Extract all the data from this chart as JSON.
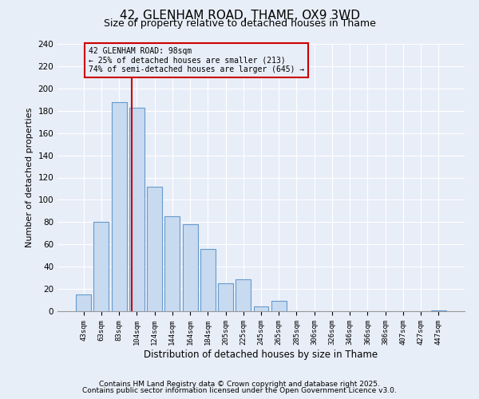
{
  "title": "42, GLENHAM ROAD, THAME, OX9 3WD",
  "subtitle": "Size of property relative to detached houses in Thame",
  "xlabel": "Distribution of detached houses by size in Thame",
  "ylabel": "Number of detached properties",
  "bar_labels": [
    "43sqm",
    "63sqm",
    "83sqm",
    "104sqm",
    "124sqm",
    "144sqm",
    "164sqm",
    "184sqm",
    "205sqm",
    "225sqm",
    "245sqm",
    "265sqm",
    "285sqm",
    "306sqm",
    "326sqm",
    "346sqm",
    "366sqm",
    "386sqm",
    "407sqm",
    "427sqm",
    "447sqm"
  ],
  "bar_values": [
    15,
    80,
    188,
    183,
    112,
    85,
    78,
    56,
    25,
    29,
    4,
    9,
    0,
    0,
    0,
    0,
    0,
    0,
    0,
    0,
    1
  ],
  "bar_color": "#c8daf0",
  "bar_edge_color": "#6699cc",
  "annotation_line_color": "#cc0000",
  "annotation_box_text": "42 GLENHAM ROAD: 98sqm\n← 25% of detached houses are smaller (213)\n74% of semi-detached houses are larger (645) →",
  "annotation_box_edge_color": "#cc0000",
  "ylim": [
    0,
    240
  ],
  "yticks": [
    0,
    20,
    40,
    60,
    80,
    100,
    120,
    140,
    160,
    180,
    200,
    220,
    240
  ],
  "footnote1": "Contains HM Land Registry data © Crown copyright and database right 2025.",
  "footnote2": "Contains public sector information licensed under the Open Government Licence v3.0.",
  "background_color": "#e8eef8",
  "title_fontsize": 11,
  "subtitle_fontsize": 9,
  "xlabel_fontsize": 8.5,
  "ylabel_fontsize": 8,
  "footnote_fontsize": 6.5
}
